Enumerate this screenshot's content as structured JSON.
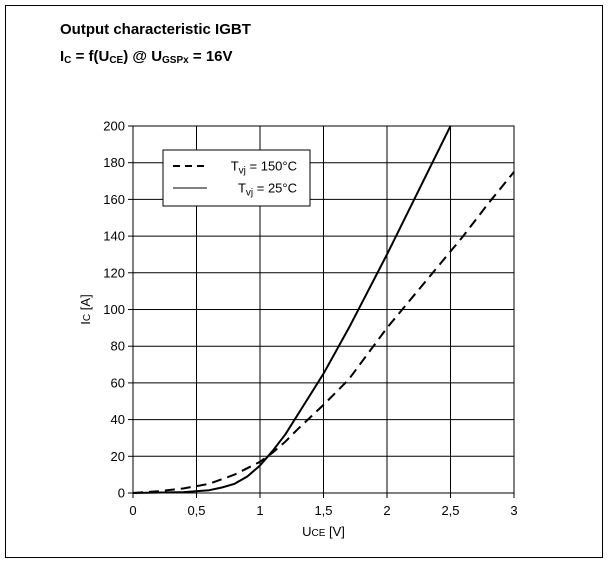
{
  "title": {
    "line1": "Output characteristic IGBT",
    "line2_main": "I",
    "line2_sub1": "C",
    "line2_mid": " = f(U",
    "line2_sub2": "CE",
    "line2_mid2": ") @ U",
    "line2_sub3": "GSPx",
    "line2_end": " = 16V"
  },
  "chart_data": {
    "type": "line",
    "title": "Output characteristic IGBT",
    "subtitle": "IC = f(UCE) @ UGSPx = 16V",
    "xlabel": "UCE [V]",
    "ylabel": "IC [A]",
    "xlim": [
      0,
      3
    ],
    "ylim": [
      0,
      200
    ],
    "xticks": [
      0,
      0.5,
      1,
      1.5,
      2,
      2.5,
      3
    ],
    "xtick_labels": [
      "0",
      "0,5",
      "1",
      "1,5",
      "2",
      "2,5",
      "3"
    ],
    "yticks": [
      0,
      20,
      40,
      60,
      80,
      100,
      120,
      140,
      160,
      180,
      200
    ],
    "yticklabels": [
      "0",
      "20",
      "40",
      "60",
      "80",
      "100",
      "120",
      "140",
      "160",
      "180",
      "200"
    ],
    "grid": true,
    "legend_position": "top-left",
    "series": [
      {
        "name": "Tvj = 150°C",
        "legend_main": "T",
        "legend_sub": "vj",
        "legend_rest": " = 150°C",
        "style": "dashed",
        "color": "#000000",
        "x": [
          0,
          0.2,
          0.4,
          0.6,
          0.8,
          1.0,
          1.1,
          1.2,
          1.3,
          1.5,
          1.7,
          2.0,
          2.3,
          2.6,
          2.8,
          3.0
        ],
        "y": [
          0,
          1,
          2.5,
          5,
          10,
          17,
          22,
          28,
          35,
          48,
          62,
          90,
          115,
          140,
          158,
          175
        ]
      },
      {
        "name": "Tvj = 25°C",
        "legend_main": "T",
        "legend_sub": "vj",
        "legend_rest": " = 25°C",
        "style": "solid",
        "color": "#000000",
        "x": [
          0,
          0.4,
          0.6,
          0.7,
          0.8,
          0.9,
          1.0,
          1.1,
          1.2,
          1.3,
          1.5,
          1.7,
          2.0,
          2.2,
          2.5
        ],
        "y": [
          0,
          0.5,
          1.5,
          3,
          5,
          9,
          15,
          23,
          32,
          43,
          65,
          90,
          130,
          158,
          200
        ]
      }
    ]
  }
}
